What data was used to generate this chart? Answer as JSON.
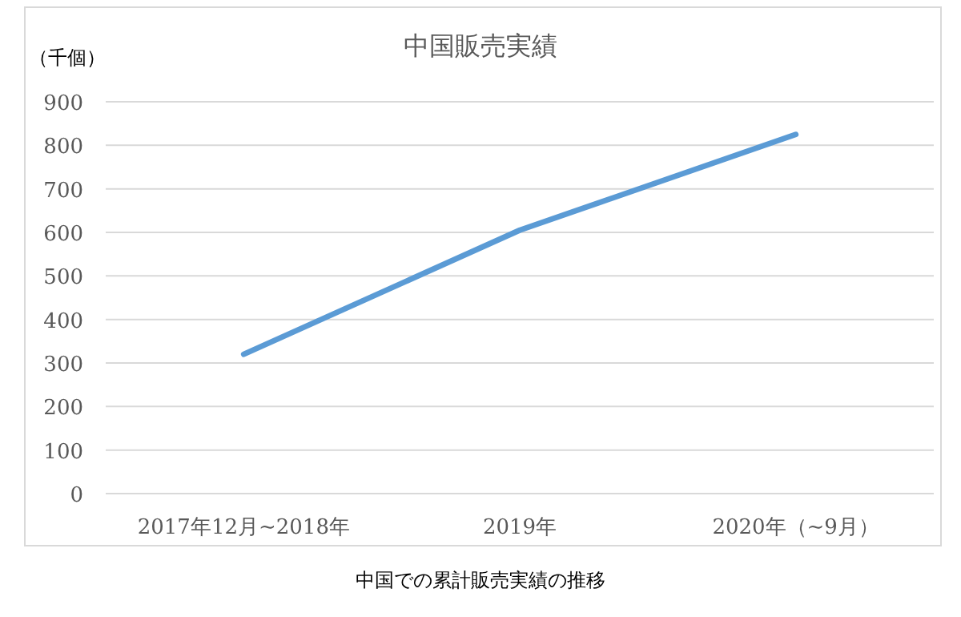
{
  "chart_data": {
    "type": "line",
    "title": "中国販売実績",
    "ylabel": "（千個）",
    "categories": [
      "2017年12月~2018年",
      "2019年",
      "2020年（~9月）"
    ],
    "series": [
      {
        "color": "#5b9bd5",
        "values": [
          320,
          605,
          825
        ]
      }
    ],
    "ylim": [
      0,
      900
    ],
    "yticks": [
      0,
      100,
      200,
      300,
      400,
      500,
      600,
      700,
      800,
      900
    ],
    "grid": "y",
    "annotations": [
      "中国での累計販売実績の推移"
    ]
  }
}
